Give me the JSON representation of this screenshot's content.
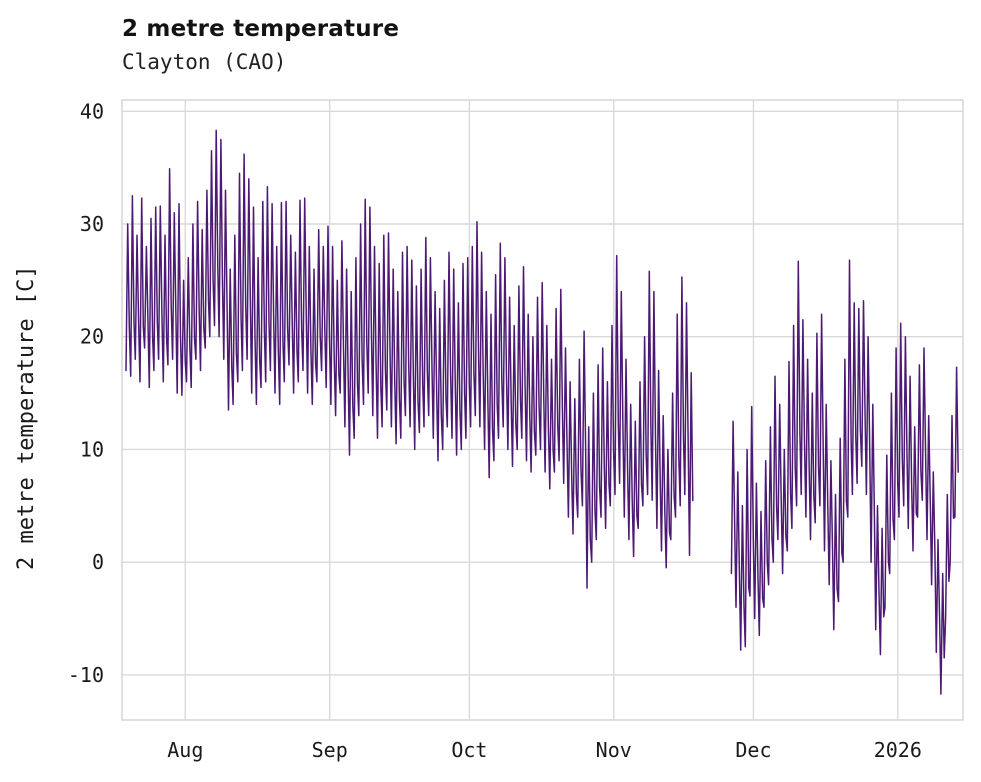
{
  "figure": {
    "background_color": "#ffffff",
    "grid_color": "#d9d9d9",
    "text_color": "#1a1a1a"
  },
  "chart_data": {
    "type": "line",
    "title": "2 metre temperature",
    "subtitle": "Clayton (CAO)",
    "xlabel": "",
    "ylabel": "2 metre temperature [C]",
    "units": "C",
    "line_color": "#4c1a73",
    "grid": true,
    "legend": "none",
    "ylim": [
      -14,
      41
    ],
    "yticks": [
      -10,
      0,
      10,
      20,
      30,
      40
    ],
    "x_axis": {
      "tick_labels": [
        "Aug",
        "Sep",
        "Oct",
        "Nov",
        "Dec",
        "2026"
      ],
      "tick_days": [
        13,
        44,
        74,
        105,
        135,
        166
      ],
      "range_days": [
        -0.6,
        180
      ],
      "note": "day index 0 = first plotted day in late July; data gap of ~8 days in mid-late November"
    },
    "series_name": "2 metre temperature",
    "daily_min_max": [
      [
        17,
        30
      ],
      [
        16.5,
        32.5
      ],
      [
        18,
        29
      ],
      [
        16,
        32.3
      ],
      [
        19,
        28
      ],
      [
        15.5,
        30.5
      ],
      [
        17,
        31.5
      ],
      [
        18,
        31.6
      ],
      [
        16,
        29
      ],
      [
        17.5,
        34.9
      ],
      [
        18,
        31
      ],
      [
        15,
        31.8
      ],
      [
        14.8,
        25
      ],
      [
        16,
        27
      ],
      [
        15.5,
        30
      ],
      [
        18,
        32
      ],
      [
        17,
        29.5
      ],
      [
        19,
        33
      ],
      [
        20,
        36.5
      ],
      [
        21,
        38.3
      ],
      [
        20,
        37.5
      ],
      [
        18,
        33
      ],
      [
        13.5,
        26
      ],
      [
        14,
        29
      ],
      [
        16,
        34.5
      ],
      [
        17,
        36.2
      ],
      [
        18,
        34
      ],
      [
        15,
        31.5
      ],
      [
        14,
        27
      ],
      [
        15.5,
        32
      ],
      [
        16,
        33.3
      ],
      [
        17,
        31.8
      ],
      [
        15,
        28
      ],
      [
        14,
        31.9
      ],
      [
        16,
        32
      ],
      [
        17.5,
        29
      ],
      [
        15,
        27.5
      ],
      [
        16,
        32.1
      ],
      [
        17,
        32.3
      ],
      [
        15,
        28
      ],
      [
        14,
        26
      ],
      [
        16,
        29.5
      ],
      [
        17,
        28
      ],
      [
        15.5,
        29.8
      ],
      [
        14,
        28
      ],
      [
        13,
        25
      ],
      [
        15,
        28.5
      ],
      [
        12,
        26
      ],
      [
        9.5,
        24
      ],
      [
        11,
        27
      ],
      [
        13,
        30
      ],
      [
        14,
        32.2
      ],
      [
        15,
        31.5
      ],
      [
        13,
        28
      ],
      [
        11,
        26.5
      ],
      [
        12,
        29
      ],
      [
        13.5,
        29.2
      ],
      [
        12,
        26
      ],
      [
        10.5,
        24
      ],
      [
        11,
        27.5
      ],
      [
        13,
        28
      ],
      [
        12,
        26.8
      ],
      [
        10,
        24.5
      ],
      [
        11.5,
        26
      ],
      [
        12,
        28.8
      ],
      [
        13,
        27
      ],
      [
        11,
        24
      ],
      [
        9,
        22.5
      ],
      [
        10,
        25
      ],
      [
        12,
        27.5
      ],
      [
        11,
        26
      ],
      [
        9.5,
        23
      ],
      [
        10,
        26.5
      ],
      [
        11,
        27
      ],
      [
        12,
        28
      ],
      [
        13,
        30.2
      ],
      [
        12,
        27.5
      ],
      [
        10,
        24
      ],
      [
        7.5,
        22
      ],
      [
        9,
        25.5
      ],
      [
        11,
        28.3
      ],
      [
        12,
        27
      ],
      [
        10,
        23.5
      ],
      [
        8.5,
        21
      ],
      [
        10,
        24.5
      ],
      [
        11,
        26.2
      ],
      [
        9,
        22
      ],
      [
        8,
        20
      ],
      [
        9.5,
        23.5
      ],
      [
        10,
        24.8
      ],
      [
        8,
        21
      ],
      [
        6.5,
        18
      ],
      [
        8,
        22.5
      ],
      [
        9,
        24.2
      ],
      [
        7,
        19
      ],
      [
        4,
        16
      ],
      [
        2.5,
        14.5
      ],
      [
        4,
        18
      ],
      [
        5,
        20.5
      ],
      [
        -2.3,
        12
      ],
      [
        0,
        15
      ],
      [
        2,
        17.5
      ],
      [
        4,
        19
      ],
      [
        3,
        16
      ],
      [
        5,
        21
      ],
      [
        6,
        27.2
      ],
      [
        7,
        24
      ],
      [
        4,
        18
      ],
      [
        2,
        14
      ],
      [
        0.5,
        12.5
      ],
      [
        3,
        16
      ],
      [
        5,
        20
      ],
      [
        6,
        25.8
      ],
      [
        5.5,
        24
      ],
      [
        3,
        17
      ],
      [
        1,
        13
      ],
      [
        -0.5,
        10
      ],
      [
        2,
        15
      ],
      [
        4,
        22
      ],
      [
        5,
        25.3
      ],
      [
        6,
        23
      ],
      [
        0.6,
        16.8
      ],
      null,
      null,
      null,
      null,
      null,
      null,
      null,
      null,
      [
        -1,
        12.5
      ],
      [
        -4,
        8
      ],
      [
        -7.8,
        5
      ],
      [
        -7.5,
        10
      ],
      [
        -3,
        13.8
      ],
      [
        -5,
        7
      ],
      [
        -6.5,
        4.5
      ],
      [
        -4,
        9
      ],
      [
        -2,
        12
      ],
      [
        0,
        16.5
      ],
      [
        2,
        14
      ],
      [
        -1,
        10
      ],
      [
        1,
        17.8
      ],
      [
        3,
        21
      ],
      [
        5,
        26.7
      ],
      [
        6,
        21.5
      ],
      [
        4,
        18
      ],
      [
        2,
        15
      ],
      [
        3.5,
        20.3
      ],
      [
        5,
        22
      ],
      [
        1,
        14
      ],
      [
        -2,
        9
      ],
      [
        -6,
        6
      ],
      [
        -3.5,
        11
      ],
      [
        0,
        18
      ],
      [
        4,
        26.8
      ],
      [
        6,
        23
      ],
      [
        7,
        22.5
      ],
      [
        8.5,
        23.2
      ],
      [
        6,
        20
      ],
      [
        0,
        14
      ],
      [
        -6,
        5
      ],
      [
        -8.2,
        3
      ],
      [
        -4,
        9.5
      ],
      [
        -1,
        15
      ],
      [
        2,
        19
      ],
      [
        4,
        21.2
      ],
      [
        5,
        20
      ],
      [
        3,
        16.5
      ],
      [
        1,
        12
      ],
      [
        4,
        17.5
      ],
      [
        5.5,
        19
      ],
      [
        2,
        13
      ],
      [
        -2,
        8
      ],
      [
        -8,
        2
      ],
      [
        -11.7,
        -1
      ],
      [
        -5,
        6
      ],
      [
        0,
        13
      ],
      [
        4,
        17.3
      ]
    ]
  }
}
